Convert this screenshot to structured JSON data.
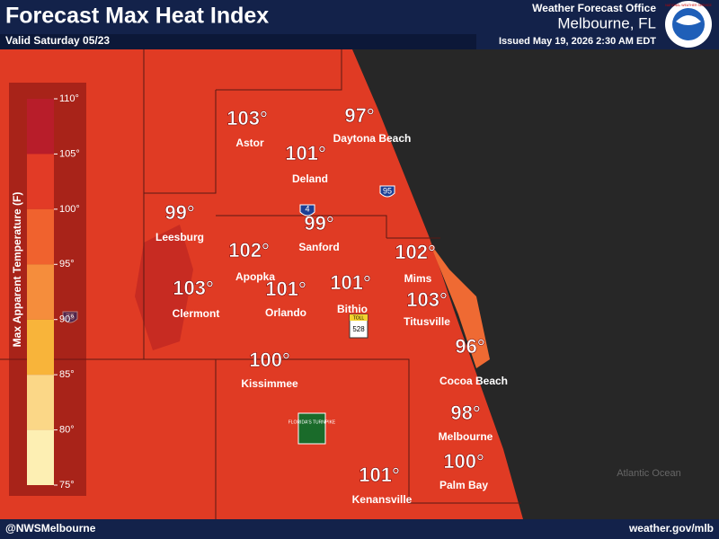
{
  "header": {
    "title": "Forecast Max Heat Index",
    "valid": "Valid Saturday 05/23",
    "office": "Weather Forecast Office",
    "location": "Melbourne, FL",
    "issued": "Issued May 19, 2026 2:30 AM EDT",
    "logo_text": "NATIONAL WEATHER SERVICE"
  },
  "legend": {
    "title": "Max Apparent Temperature (F)",
    "ticks": [
      {
        "value": 110,
        "label": "110°"
      },
      {
        "value": 105,
        "label": "105°"
      },
      {
        "value": 100,
        "label": "100°"
      },
      {
        "value": 95,
        "label": "95°"
      },
      {
        "value": 90,
        "label": "90°"
      },
      {
        "value": 85,
        "label": "85°"
      },
      {
        "value": 80,
        "label": "80°"
      },
      {
        "value": 75,
        "label": "75°"
      }
    ],
    "bands": [
      {
        "from": 105,
        "to": 110,
        "color": "#b81d2a"
      },
      {
        "from": 100,
        "to": 105,
        "color": "#e23b26"
      },
      {
        "from": 95,
        "to": 100,
        "color": "#f0622e"
      },
      {
        "from": 90,
        "to": 95,
        "color": "#f58d3c"
      },
      {
        "from": 85,
        "to": 90,
        "color": "#f8b43a"
      },
      {
        "from": 80,
        "to": 85,
        "color": "#fbd787"
      },
      {
        "from": 75,
        "to": 80,
        "color": "#fdefb3"
      }
    ]
  },
  "cities": [
    {
      "name": "Astor",
      "temp": {
        "value": 103,
        "label": "103°"
      }
    },
    {
      "name": "Daytona Beach",
      "temp": {
        "value": 97,
        "label": "97°"
      }
    },
    {
      "name": "Deland",
      "temp": {
        "value": 101,
        "label": "101°"
      }
    },
    {
      "name": "Leesburg",
      "temp": {
        "value": 99,
        "label": "99°"
      }
    },
    {
      "name": "Sanford",
      "temp": {
        "value": 99,
        "label": "99°"
      }
    },
    {
      "name": "Apopka",
      "temp": {
        "value": 102,
        "label": "102°"
      }
    },
    {
      "name": "Mims",
      "temp": {
        "value": 102,
        "label": "102°"
      }
    },
    {
      "name": "Clermont",
      "temp": {
        "value": 103,
        "label": "103°"
      }
    },
    {
      "name": "Orlando",
      "temp": {
        "value": 101,
        "label": "101°"
      }
    },
    {
      "name": "Bithio",
      "temp": {
        "value": 101,
        "label": "101°"
      }
    },
    {
      "name": "Titusville",
      "temp": {
        "value": 103,
        "label": "103°"
      }
    },
    {
      "name": "Cocoa Beach",
      "temp": {
        "value": 96,
        "label": "96°"
      }
    },
    {
      "name": "Kissimmee",
      "temp": {
        "value": 100,
        "label": "100°"
      }
    },
    {
      "name": "Melbourne",
      "temp": {
        "value": 98,
        "label": "98°"
      }
    },
    {
      "name": "Palm Bay",
      "temp": {
        "value": 100,
        "label": "100°"
      }
    },
    {
      "name": "Kenansville",
      "temp": {
        "value": 101,
        "label": "101°"
      }
    }
  ],
  "shields": {
    "i4": "4",
    "i95": "95",
    "i75": "75",
    "sr528": "528",
    "toll": "TOLL",
    "turnpike": "FLORIDA'S TURNPIKE"
  },
  "ocean_label": "Atlantic Ocean",
  "footer": {
    "left": "@NWSMelbourne",
    "right": "weather.gov/mlb"
  }
}
